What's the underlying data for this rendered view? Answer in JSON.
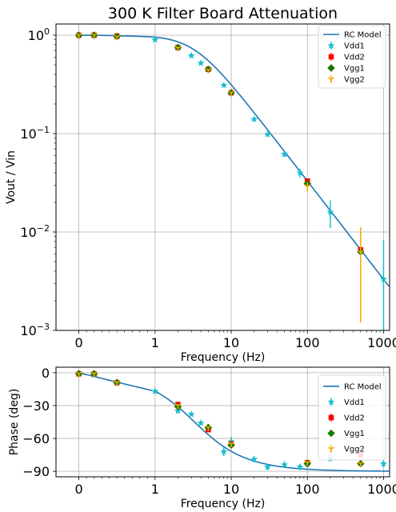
{
  "chart_data": [
    {
      "type": "scatter",
      "title": "300 K Filter Board Attenuation",
      "xlabel": "Frequency (Hz)",
      "ylabel": "Vout / Vin",
      "xscale": "symlog",
      "yscale": "log",
      "xlim": [
        -0.3,
        1200
      ],
      "ylim": [
        0.001,
        1.3
      ],
      "xticks": [
        0,
        1,
        10,
        100,
        1000
      ],
      "xtick_labels": [
        "0",
        "1",
        "10",
        "100",
        "1000"
      ],
      "yticks": [
        0.001,
        0.01,
        0.1,
        1
      ],
      "grid": true,
      "legend_position": "top-right",
      "model": {
        "name": "RC Model",
        "color": "#1f77b4",
        "cutoff_hz": 3.3,
        "quantity": "magnitude"
      },
      "series": [
        {
          "name": "Vdd1",
          "marker": "star",
          "color": "#17becf",
          "x": [
            0,
            0.2,
            0.5,
            1,
            2,
            3,
            4,
            5,
            8,
            10,
            20,
            30,
            50,
            80,
            100,
            200,
            500,
            1000
          ],
          "y": [
            1.0,
            1.0,
            0.97,
            0.9,
            0.75,
            0.62,
            0.52,
            0.45,
            0.31,
            0.26,
            0.14,
            0.098,
            0.062,
            0.04,
            0.031,
            0.016,
            0.0064,
            0.0033
          ],
          "err": [
            0,
            0,
            0,
            0,
            0,
            0,
            0,
            0,
            0,
            0,
            0,
            0,
            0.004,
            0.004,
            0.003,
            0.005,
            0,
            0.005
          ]
        },
        {
          "name": "Vdd2",
          "marker": "square",
          "color": "#ff0000",
          "x": [
            0,
            0.2,
            0.5,
            2,
            5,
            10,
            100,
            500
          ],
          "y": [
            1.0,
            1.0,
            0.98,
            0.75,
            0.45,
            0.26,
            0.033,
            0.0066
          ],
          "err": [
            0,
            0,
            0,
            0,
            0,
            0,
            0.002,
            0
          ]
        },
        {
          "name": "Vgg1",
          "marker": "diamond",
          "color": "#008000",
          "x": [
            0,
            0.2,
            0.5,
            2,
            5,
            10,
            100,
            500
          ],
          "y": [
            1.0,
            1.0,
            0.97,
            0.75,
            0.45,
            0.26,
            0.031,
            0.0063
          ],
          "err": [
            0,
            0,
            0,
            0,
            0,
            0,
            0,
            0
          ]
        },
        {
          "name": "Vgg2",
          "marker": "tri",
          "color": "#ffa500",
          "x": [
            0,
            0.2,
            0.5,
            2,
            5,
            10,
            100,
            500
          ],
          "y": [
            1.0,
            1.0,
            0.96,
            0.74,
            0.44,
            0.26,
            0.029,
            0.0062
          ],
          "err": [
            0,
            0,
            0,
            0,
            0,
            0,
            0.003,
            0.005
          ]
        }
      ]
    },
    {
      "type": "scatter",
      "title": "",
      "xlabel": "Frequency (Hz)",
      "ylabel": "Phase (deg)",
      "xscale": "symlog",
      "yscale": "linear",
      "xlim": [
        -0.3,
        1200
      ],
      "ylim": [
        -95,
        5
      ],
      "xticks": [
        0,
        1,
        10,
        100,
        1000
      ],
      "xtick_labels": [
        "0",
        "1",
        "10",
        "100",
        "1000"
      ],
      "yticks": [
        0,
        -30,
        -60,
        -90
      ],
      "ytick_labels": [
        "0",
        "−30",
        "−60",
        "−90"
      ],
      "grid": true,
      "legend_position": "top-right",
      "model": {
        "name": "RC Model",
        "color": "#1f77b4",
        "cutoff_hz": 3.3,
        "quantity": "phase"
      },
      "series": [
        {
          "name": "Vdd1",
          "marker": "star",
          "color": "#17becf",
          "x": [
            0,
            0.2,
            0.5,
            1,
            2,
            3,
            4,
            5,
            8,
            10,
            20,
            30,
            50,
            80,
            100,
            200,
            1000
          ],
          "y": [
            -1,
            -2,
            -9,
            -17,
            -35,
            -38,
            -46,
            -52,
            -72,
            -63,
            -79,
            -86,
            -84,
            -86,
            -83,
            -78,
            -83
          ],
          "err": [
            0,
            0,
            0,
            0,
            0,
            0,
            0,
            0,
            4,
            4,
            3,
            3,
            3,
            3,
            3,
            3,
            3
          ]
        },
        {
          "name": "Vdd2",
          "marker": "square",
          "color": "#ff0000",
          "x": [
            0,
            0.2,
            0.5,
            2,
            5,
            10,
            100,
            500
          ],
          "y": [
            -1,
            -1,
            -9,
            -29,
            -52,
            -65,
            -82,
            -75
          ],
          "err": [
            0,
            0,
            0,
            0,
            0,
            0,
            0,
            0
          ]
        },
        {
          "name": "Vgg1",
          "marker": "diamond",
          "color": "#008000",
          "x": [
            0,
            0.2,
            0.5,
            2,
            5,
            10,
            100,
            500
          ],
          "y": [
            -1,
            -1,
            -9,
            -31,
            -50,
            -66,
            -83,
            -83
          ],
          "err": [
            0,
            0,
            0,
            0,
            0,
            0,
            0,
            0
          ]
        },
        {
          "name": "Vgg2",
          "marker": "tri",
          "color": "#ffa500",
          "x": [
            0,
            0.2,
            0.5,
            2,
            5,
            10,
            100,
            500
          ],
          "y": [
            -1,
            -1,
            -9,
            -30,
            -50,
            -65,
            -82,
            -83
          ],
          "err": [
            0,
            0,
            0,
            0,
            0,
            0,
            0,
            0
          ]
        }
      ]
    }
  ]
}
